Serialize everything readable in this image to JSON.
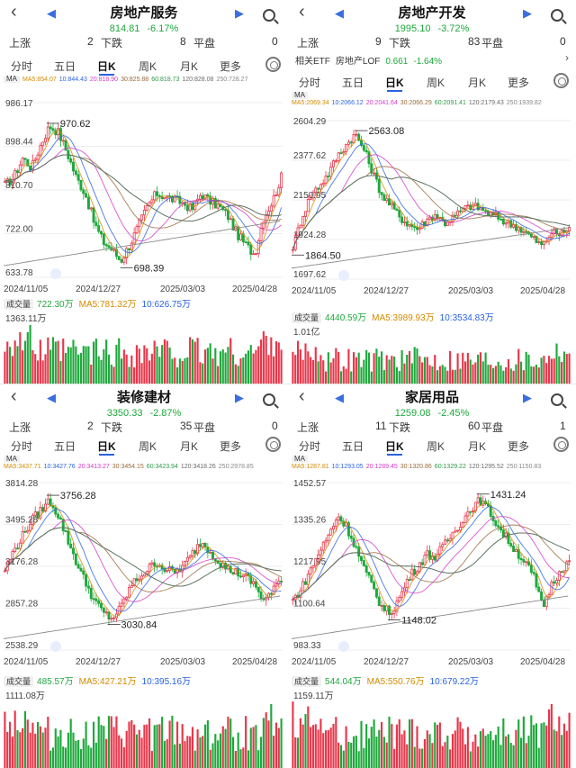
{
  "tabs": [
    "分时",
    "五日",
    "日K",
    "周K",
    "月K",
    "更多"
  ],
  "active_tab": "日K",
  "stat_labels": {
    "up": "上涨",
    "down": "下跌",
    "flat": "平盘"
  },
  "ma_label": "MA",
  "volume_label": "成交量",
  "x_dates": [
    "2024/11/05",
    "2024/12/27",
    "2025/03/03",
    "2025/04/28"
  ],
  "colors": {
    "up": "#e8364a",
    "down": "#1ea83c",
    "ma5": "#d48a00",
    "ma10": "#2a62e0",
    "ma20": "#d23ac8",
    "ma30": "#9a6a3a",
    "ma60": "#2a9a45",
    "ma120": "#6a6a6a",
    "ma250": "#8a8a8a",
    "accent": "#2a62e0"
  },
  "icons": [
    "chevron-left-icon",
    "prev-triangle-icon",
    "next-triangle-icon",
    "search-icon",
    "settings-icon",
    "refresh-icon"
  ],
  "panels": [
    {
      "name": "房地产服务",
      "price": "814.81",
      "change": "-6.17%",
      "stats": {
        "up": "2",
        "down": "8",
        "flat": "0"
      },
      "ma_values": [
        "MA5:854.07",
        "10:844.43",
        "20:818.90",
        "30:825.88",
        "60:818.73",
        "120:828.08",
        "250:728.27"
      ],
      "y_ticks": [
        "986.17",
        "898.44",
        "810.70",
        "722.00",
        "633.78"
      ],
      "annotations": {
        "high": "970.62",
        "low": "698.39"
      },
      "volume": {
        "v0": "722.30万",
        "v5": "MA5:781.32万",
        "v10": "10:626.75万",
        "max": "1363.11万"
      },
      "chart_data": {
        "type": "candlestick",
        "y_range": [
          633.78,
          986.17
        ],
        "high": 970.62,
        "low": 698.39,
        "last": 814.81,
        "x_start": "2024/11/05",
        "x_end": "2025/04/28"
      }
    },
    {
      "name": "房地产开发",
      "price": "1995.10",
      "change": "-3.72%",
      "stats": {
        "up": "9",
        "down": "83",
        "flat": "0"
      },
      "etf": {
        "label": "相关ETF",
        "name": "房地产LOF",
        "price": "0.661",
        "change": "-1.64%"
      },
      "ma_values": [
        "MA5:2069.34",
        "10:2066.12",
        "20:2041.64",
        "30:2066.29",
        "60:2091.41",
        "120:2179.43",
        "250:1939.82"
      ],
      "y_ticks": [
        "2604.29",
        "2377.62",
        "2150.95",
        "1924.28",
        "1697.62"
      ],
      "annotations": {
        "high": "2563.08",
        "low": "1864.50"
      },
      "volume": {
        "v0": "4440.59万",
        "v5": "MA5:3989.93万",
        "v10": "10:3534.83万",
        "max": "1.01亿"
      },
      "chart_data": {
        "type": "candlestick",
        "y_range": [
          1697.62,
          2604.29
        ],
        "high": 2563.08,
        "low": 1864.5,
        "last": 1995.1,
        "x_start": "2024/11/05",
        "x_end": "2025/04/28"
      }
    },
    {
      "name": "装修建材",
      "price": "3350.33",
      "change": "-2.87%",
      "stats": {
        "up": "2",
        "down": "35",
        "flat": "0"
      },
      "ma_values": [
        "MA5:3437.71",
        "10:3427.76",
        "20:3413.27",
        "30:3454.15",
        "60:3423.94",
        "120:3418.26",
        "250:2978.85"
      ],
      "y_ticks": [
        "3814.28",
        "3495.28",
        "3176.28",
        "2857.28",
        "2538.29"
      ],
      "annotations": {
        "high": "3756.28",
        "low": "3030.84"
      },
      "volume": {
        "v0": "485.57万",
        "v5": "MA5:427.21万",
        "v10": "10:395.16万",
        "max": "1111.08万"
      },
      "chart_data": {
        "type": "candlestick",
        "y_range": [
          2538.29,
          3814.28
        ],
        "high": 3756.28,
        "low": 3030.84,
        "last": 3350.33,
        "x_start": "2024/11/05",
        "x_end": "2025/04/28"
      }
    },
    {
      "name": "家居用品",
      "price": "1259.08",
      "change": "-2.45%",
      "stats": {
        "up": "11",
        "down": "60",
        "flat": "1"
      },
      "ma_values": [
        "MA5:1287.81",
        "10:1293.05",
        "20:1289.45",
        "30:1320.86",
        "60:1329.22",
        "120:1295.52",
        "250:1150.83"
      ],
      "y_ticks": [
        "1452.57",
        "1335.26",
        "1217.95",
        "1100.64",
        "983.33"
      ],
      "annotations": {
        "high": "1431.24",
        "low": "1148.02"
      },
      "volume": {
        "v0": "544.04万",
        "v5": "MA5:550.76万",
        "v10": "10:679.22万",
        "max": "1159.11万"
      },
      "chart_data": {
        "type": "candlestick",
        "y_range": [
          983.33,
          1452.57
        ],
        "high": 1431.24,
        "low": 1148.02,
        "last": 1259.08,
        "x_start": "2024/11/05",
        "x_end": "2025/04/28"
      }
    }
  ]
}
